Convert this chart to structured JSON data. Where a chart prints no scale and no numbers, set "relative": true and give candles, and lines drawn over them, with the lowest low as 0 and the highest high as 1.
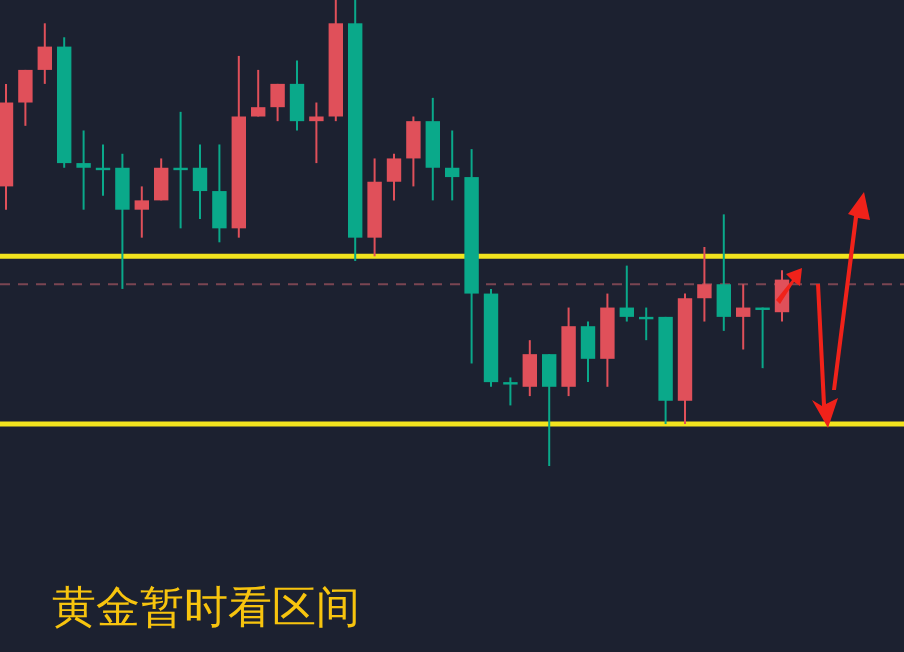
{
  "chart_data": {
    "type": "candlestick",
    "relative": true,
    "categories": [
      null,
      null,
      null,
      null,
      null,
      null,
      null,
      null,
      null,
      null,
      null,
      null,
      null,
      null,
      null,
      null,
      null,
      null,
      null,
      null,
      null,
      null,
      null,
      null,
      null,
      null,
      null,
      null,
      null,
      null,
      null,
      null,
      null,
      null,
      null,
      null,
      null,
      null,
      null,
      null,
      null
    ],
    "ohlc": [
      [
        0.6,
        0.82,
        0.55,
        0.78
      ],
      [
        0.78,
        0.85,
        0.73,
        0.85
      ],
      [
        0.85,
        0.95,
        0.82,
        0.9
      ],
      [
        0.9,
        0.92,
        0.64,
        0.65
      ],
      [
        0.65,
        0.72,
        0.55,
        0.64
      ],
      [
        0.64,
        0.69,
        0.58,
        0.64
      ],
      [
        0.64,
        0.67,
        0.38,
        0.55
      ],
      [
        0.55,
        0.6,
        0.49,
        0.57
      ],
      [
        0.57,
        0.66,
        0.57,
        0.64
      ],
      [
        0.64,
        0.76,
        0.51,
        0.64
      ],
      [
        0.64,
        0.69,
        0.53,
        0.59
      ],
      [
        0.59,
        0.69,
        0.48,
        0.51
      ],
      [
        0.51,
        0.88,
        0.49,
        0.75
      ],
      [
        0.75,
        0.85,
        0.75,
        0.77
      ],
      [
        0.77,
        0.82,
        0.74,
        0.82
      ],
      [
        0.82,
        0.87,
        0.72,
        0.74
      ],
      [
        0.74,
        0.78,
        0.65,
        0.75
      ],
      [
        0.75,
        1.0,
        0.74,
        0.95
      ],
      [
        0.95,
        1.0,
        0.44,
        0.49
      ],
      [
        0.49,
        0.66,
        0.45,
        0.61
      ],
      [
        0.61,
        0.67,
        0.57,
        0.66
      ],
      [
        0.66,
        0.75,
        0.6,
        0.74
      ],
      [
        0.74,
        0.79,
        0.57,
        0.64
      ],
      [
        0.64,
        0.72,
        0.57,
        0.62
      ],
      [
        0.62,
        0.68,
        0.22,
        0.37
      ],
      [
        0.37,
        0.38,
        0.17,
        0.18
      ],
      [
        0.18,
        0.19,
        0.13,
        0.18
      ],
      [
        0.17,
        0.27,
        0.15,
        0.24
      ],
      [
        0.24,
        0.24,
        0.0,
        0.17
      ],
      [
        0.17,
        0.34,
        0.15,
        0.3
      ],
      [
        0.3,
        0.31,
        0.18,
        0.23
      ],
      [
        0.23,
        0.37,
        0.17,
        0.34
      ],
      [
        0.34,
        0.43,
        0.31,
        0.32
      ],
      [
        0.32,
        0.34,
        0.27,
        0.32
      ],
      [
        0.32,
        0.32,
        0.09,
        0.14
      ],
      [
        0.14,
        0.37,
        0.09,
        0.36
      ],
      [
        0.36,
        0.47,
        0.31,
        0.39
      ],
      [
        0.39,
        0.54,
        0.29,
        0.32
      ],
      [
        0.32,
        0.39,
        0.25,
        0.34
      ],
      [
        0.34,
        0.34,
        0.21,
        0.34
      ],
      [
        0.33,
        0.42,
        0.31,
        0.4
      ]
    ],
    "colors": [
      "#e0505a",
      "#e0505a",
      "#e0505a",
      "#0aa98a",
      "#0aa98a",
      "#0aa98a",
      "#0aa98a",
      "#e0505a",
      "#e0505a",
      "#0aa98a",
      "#0aa98a",
      "#0aa98a",
      "#e0505a",
      "#e0505a",
      "#e0505a",
      "#0aa98a",
      "#e0505a",
      "#e0505a",
      "#0aa98a",
      "#e0505a",
      "#e0505a",
      "#e0505a",
      "#0aa98a",
      "#0aa98a",
      "#0aa98a",
      "#0aa98a",
      "#0aa98a",
      "#e0505a",
      "#0aa98a",
      "#e0505a",
      "#0aa98a",
      "#e0505a",
      "#0aa98a",
      "#0aa98a",
      "#0aa98a",
      "#e0505a",
      "#e0505a",
      "#0aa98a",
      "#e0505a",
      "#0aa98a",
      "#e0505a"
    ],
    "ref_lines": [
      {
        "axis": "y",
        "value": 0.45,
        "color": "#f2e41e"
      },
      {
        "axis": "y",
        "value": 0.09,
        "color": "#f2e41e"
      },
      {
        "axis": "y",
        "value": 0.39,
        "color": "#7a4552",
        "line_style": "dashed"
      }
    ],
    "annotations": [
      "黄金暂时看区间"
    ]
  }
}
